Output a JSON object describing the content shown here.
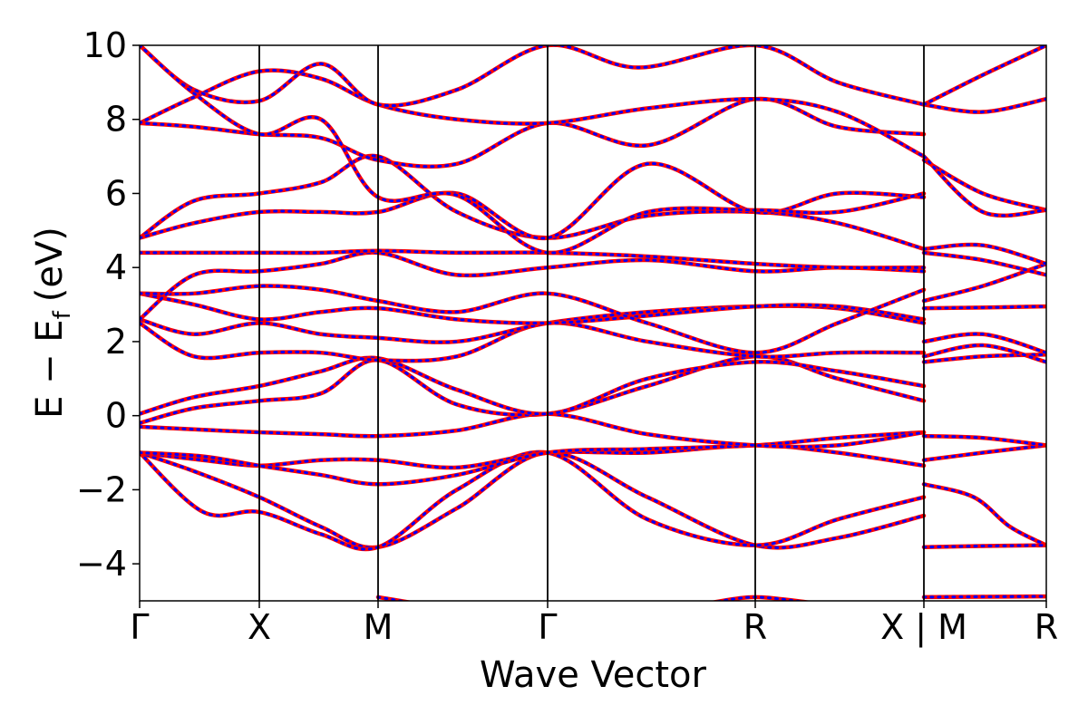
{
  "chart_data": {
    "type": "line",
    "title": "",
    "xlabel": "Wave Vector",
    "ylabel": "E − E",
    "ylabel_sub": "f",
    "ylabel_unit": "(eV)",
    "ylim": [
      -5,
      10
    ],
    "yticks": [
      -4,
      -2,
      0,
      2,
      4,
      6,
      8,
      10
    ],
    "ytick_labels": [
      "−4",
      "−2",
      "0",
      "2",
      "4",
      "6",
      "8",
      "10"
    ],
    "xlim": [
      0,
      1
    ],
    "kpoints": [
      {
        "label": "Γ",
        "x": 0.0
      },
      {
        "label": "X",
        "x": 0.132
      },
      {
        "label": "M",
        "x": 0.263
      },
      {
        "label": "Γ",
        "x": 0.45
      },
      {
        "label": "R",
        "x": 0.679
      },
      {
        "label": "X | M",
        "x": 0.865
      },
      {
        "label": "R",
        "x": 1.0
      }
    ],
    "grid": false,
    "legend": "none",
    "series_styles": [
      {
        "color": "#ff0000",
        "style": "solid"
      },
      {
        "color": "#0000ff",
        "style": "dotted"
      }
    ],
    "bands": [
      [
        [
          0.0,
          -1.0
        ],
        [
          0.06,
          -1.5
        ],
        [
          0.132,
          -2.2
        ],
        [
          0.2,
          -3.0
        ],
        [
          0.263,
          -3.55
        ],
        [
          0.35,
          -2.5
        ],
        [
          0.45,
          -1.0
        ],
        [
          0.56,
          -2.2
        ],
        [
          0.679,
          -3.5
        ],
        [
          0.77,
          -3.3
        ],
        [
          0.865,
          -2.7
        ]
      ],
      [
        [
          0.0,
          -1.0
        ],
        [
          0.07,
          -2.6
        ],
        [
          0.132,
          -2.6
        ],
        [
          0.2,
          -3.2
        ],
        [
          0.263,
          -3.55
        ],
        [
          0.35,
          -2.0
        ],
        [
          0.45,
          -1.0
        ],
        [
          0.56,
          -2.8
        ],
        [
          0.679,
          -3.5
        ],
        [
          0.77,
          -2.8
        ],
        [
          0.865,
          -2.2
        ]
      ],
      [
        [
          0.0,
          -1.0
        ],
        [
          0.07,
          -1.2
        ],
        [
          0.132,
          -1.35
        ],
        [
          0.2,
          -1.2
        ],
        [
          0.263,
          -1.2
        ],
        [
          0.35,
          -1.4
        ],
        [
          0.45,
          -1.0
        ],
        [
          0.56,
          -1.0
        ],
        [
          0.679,
          -0.8
        ],
        [
          0.77,
          -1.0
        ],
        [
          0.865,
          -1.35
        ]
      ],
      [
        [
          0.0,
          -1.0
        ],
        [
          0.07,
          -1.1
        ],
        [
          0.132,
          -1.35
        ],
        [
          0.2,
          -1.6
        ],
        [
          0.263,
          -1.85
        ],
        [
          0.35,
          -1.6
        ],
        [
          0.45,
          -1.0
        ],
        [
          0.56,
          -0.9
        ],
        [
          0.679,
          -0.8
        ],
        [
          0.77,
          -0.6
        ],
        [
          0.865,
          -0.45
        ]
      ],
      [
        [
          0.0,
          -0.3
        ],
        [
          0.07,
          -0.38
        ],
        [
          0.132,
          -0.45
        ],
        [
          0.2,
          -0.5
        ],
        [
          0.263,
          -0.55
        ],
        [
          0.35,
          -0.4
        ],
        [
          0.45,
          0.05
        ],
        [
          0.56,
          -0.5
        ],
        [
          0.679,
          -0.8
        ],
        [
          0.77,
          -0.8
        ],
        [
          0.865,
          -0.45
        ]
      ],
      [
        [
          0.0,
          -0.2
        ],
        [
          0.06,
          0.2
        ],
        [
          0.132,
          0.4
        ],
        [
          0.2,
          0.6
        ],
        [
          0.263,
          1.5
        ],
        [
          0.35,
          0.3
        ],
        [
          0.45,
          0.05
        ],
        [
          0.56,
          0.8
        ],
        [
          0.679,
          1.6
        ],
        [
          0.77,
          1.0
        ],
        [
          0.865,
          0.4
        ]
      ],
      [
        [
          0.0,
          0.05
        ],
        [
          0.06,
          0.5
        ],
        [
          0.132,
          0.8
        ],
        [
          0.2,
          1.2
        ],
        [
          0.263,
          1.55
        ],
        [
          0.35,
          0.7
        ],
        [
          0.45,
          0.05
        ],
        [
          0.56,
          1.0
        ],
        [
          0.679,
          1.45
        ],
        [
          0.77,
          1.2
        ],
        [
          0.865,
          0.8
        ]
      ],
      [
        [
          0.0,
          2.5
        ],
        [
          0.06,
          1.6
        ],
        [
          0.132,
          1.7
        ],
        [
          0.2,
          1.7
        ],
        [
          0.263,
          1.5
        ],
        [
          0.35,
          1.6
        ],
        [
          0.45,
          2.5
        ],
        [
          0.56,
          2.0
        ],
        [
          0.679,
          1.6
        ],
        [
          0.77,
          1.7
        ],
        [
          0.865,
          1.7
        ]
      ],
      [
        [
          0.0,
          2.6
        ],
        [
          0.06,
          2.2
        ],
        [
          0.132,
          2.5
        ],
        [
          0.2,
          2.2
        ],
        [
          0.263,
          2.1
        ],
        [
          0.35,
          2.0
        ],
        [
          0.45,
          2.5
        ],
        [
          0.56,
          2.8
        ],
        [
          0.679,
          2.95
        ],
        [
          0.77,
          2.9
        ],
        [
          0.865,
          2.5
        ]
      ],
      [
        [
          0.0,
          3.3
        ],
        [
          0.06,
          3.0
        ],
        [
          0.132,
          2.6
        ],
        [
          0.2,
          2.8
        ],
        [
          0.263,
          2.9
        ],
        [
          0.35,
          2.6
        ],
        [
          0.45,
          2.5
        ],
        [
          0.56,
          2.7
        ],
        [
          0.679,
          2.95
        ],
        [
          0.77,
          2.95
        ],
        [
          0.865,
          2.6
        ]
      ],
      [
        [
          0.0,
          3.3
        ],
        [
          0.06,
          3.3
        ],
        [
          0.132,
          3.5
        ],
        [
          0.2,
          3.4
        ],
        [
          0.263,
          3.1
        ],
        [
          0.35,
          2.8
        ],
        [
          0.45,
          3.3
        ],
        [
          0.56,
          2.5
        ],
        [
          0.679,
          1.7
        ],
        [
          0.77,
          2.5
        ],
        [
          0.865,
          3.4
        ]
      ],
      [
        [
          0.0,
          2.6
        ],
        [
          0.06,
          3.8
        ],
        [
          0.132,
          3.9
        ],
        [
          0.2,
          4.1
        ],
        [
          0.263,
          4.4
        ],
        [
          0.35,
          3.8
        ],
        [
          0.45,
          4.0
        ],
        [
          0.56,
          4.2
        ],
        [
          0.679,
          3.9
        ],
        [
          0.77,
          4.0
        ],
        [
          0.865,
          3.9
        ]
      ],
      [
        [
          0.0,
          4.4
        ],
        [
          0.08,
          4.4
        ],
        [
          0.132,
          4.4
        ],
        [
          0.2,
          4.4
        ],
        [
          0.263,
          4.45
        ],
        [
          0.35,
          4.4
        ],
        [
          0.45,
          4.4
        ],
        [
          0.56,
          4.3
        ],
        [
          0.679,
          4.1
        ],
        [
          0.77,
          4.0
        ],
        [
          0.865,
          4.0
        ]
      ],
      [
        [
          0.0,
          4.8
        ],
        [
          0.06,
          5.8
        ],
        [
          0.132,
          6.0
        ],
        [
          0.2,
          6.3
        ],
        [
          0.263,
          7.0
        ],
        [
          0.35,
          5.5
        ],
        [
          0.45,
          4.8
        ],
        [
          0.56,
          5.4
        ],
        [
          0.679,
          5.5
        ],
        [
          0.77,
          5.2
        ],
        [
          0.865,
          4.5
        ]
      ],
      [
        [
          0.0,
          4.8
        ],
        [
          0.06,
          5.2
        ],
        [
          0.132,
          5.5
        ],
        [
          0.2,
          5.5
        ],
        [
          0.263,
          5.5
        ],
        [
          0.35,
          6.0
        ],
        [
          0.45,
          4.8
        ],
        [
          0.56,
          6.8
        ],
        [
          0.679,
          5.5
        ],
        [
          0.77,
          6.0
        ],
        [
          0.865,
          5.9
        ]
      ],
      [
        [
          0.0,
          7.9
        ],
        [
          0.06,
          7.8
        ],
        [
          0.132,
          7.6
        ],
        [
          0.2,
          7.5
        ],
        [
          0.263,
          6.9
        ],
        [
          0.35,
          6.8
        ],
        [
          0.45,
          7.9
        ],
        [
          0.56,
          7.3
        ],
        [
          0.679,
          8.55
        ],
        [
          0.77,
          7.8
        ],
        [
          0.865,
          7.6
        ]
      ],
      [
        [
          0.0,
          7.9
        ],
        [
          0.06,
          8.6
        ],
        [
          0.132,
          9.3
        ],
        [
          0.2,
          9.1
        ],
        [
          0.263,
          8.4
        ],
        [
          0.35,
          8.0
        ],
        [
          0.45,
          7.9
        ],
        [
          0.56,
          8.3
        ],
        [
          0.679,
          8.55
        ],
        [
          0.77,
          8.2
        ],
        [
          0.865,
          7.0
        ]
      ],
      [
        [
          0.0,
          10.0
        ],
        [
          0.06,
          8.8
        ],
        [
          0.132,
          8.5
        ],
        [
          0.2,
          9.5
        ],
        [
          0.263,
          8.4
        ],
        [
          0.35,
          8.8
        ],
        [
          0.45,
          10.0
        ],
        [
          0.55,
          9.4
        ],
        [
          0.679,
          10.0
        ],
        [
          0.77,
          9.0
        ],
        [
          0.865,
          8.4
        ]
      ],
      [
        [
          0.0,
          10.0
        ],
        [
          0.06,
          8.7
        ],
        [
          0.132,
          7.6
        ],
        [
          0.2,
          8.0
        ],
        [
          0.263,
          5.9
        ],
        [
          0.35,
          5.95
        ],
        [
          0.45,
          4.4
        ],
        [
          0.56,
          5.5
        ],
        [
          0.679,
          5.55
        ],
        [
          0.77,
          5.5
        ],
        [
          0.865,
          6.0
        ]
      ],
      [
        [
          0.263,
          -4.9
        ],
        [
          0.3,
          -5.05
        ]
      ],
      [
        [
          0.63,
          -5.05
        ],
        [
          0.679,
          -4.9
        ],
        [
          0.74,
          -5.05
        ]
      ],
      [
        [
          0.865,
          -1.85
        ],
        [
          0.92,
          -2.2
        ],
        [
          0.96,
          -3.0
        ],
        [
          1.0,
          -3.5
        ]
      ],
      [
        [
          0.865,
          -3.55
        ],
        [
          0.93,
          -3.52
        ],
        [
          1.0,
          -3.5
        ]
      ],
      [
        [
          0.865,
          -4.9
        ],
        [
          0.93,
          -4.89
        ],
        [
          1.0,
          -4.88
        ]
      ],
      [
        [
          0.865,
          -1.2
        ],
        [
          0.93,
          -1.0
        ],
        [
          1.0,
          -0.8
        ]
      ],
      [
        [
          0.865,
          -0.55
        ],
        [
          0.93,
          -0.6
        ],
        [
          1.0,
          -0.8
        ]
      ],
      [
        [
          0.865,
          1.45
        ],
        [
          0.93,
          1.6
        ],
        [
          1.0,
          1.65
        ]
      ],
      [
        [
          0.865,
          1.6
        ],
        [
          0.93,
          1.9
        ],
        [
          1.0,
          1.45
        ]
      ],
      [
        [
          0.865,
          2.0
        ],
        [
          0.93,
          2.2
        ],
        [
          1.0,
          1.7
        ]
      ],
      [
        [
          0.865,
          2.9
        ],
        [
          0.93,
          2.92
        ],
        [
          1.0,
          2.95
        ]
      ],
      [
        [
          0.865,
          3.1
        ],
        [
          0.93,
          3.5
        ],
        [
          1.0,
          4.1
        ]
      ],
      [
        [
          0.865,
          4.4
        ],
        [
          0.93,
          4.2
        ],
        [
          1.0,
          3.8
        ]
      ],
      [
        [
          0.865,
          4.5
        ],
        [
          0.93,
          4.6
        ],
        [
          1.0,
          4.1
        ]
      ],
      [
        [
          0.865,
          6.9
        ],
        [
          0.93,
          6.0
        ],
        [
          1.0,
          5.55
        ]
      ],
      [
        [
          0.865,
          7.0
        ],
        [
          0.93,
          5.5
        ],
        [
          1.0,
          5.55
        ]
      ],
      [
        [
          0.865,
          8.4
        ],
        [
          0.93,
          8.2
        ],
        [
          1.0,
          8.55
        ]
      ],
      [
        [
          0.865,
          8.4
        ],
        [
          0.93,
          9.2
        ],
        [
          1.0,
          10.0
        ]
      ]
    ]
  }
}
